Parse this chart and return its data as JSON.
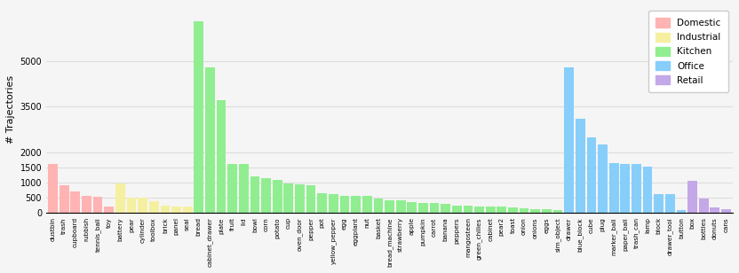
{
  "categories": [
    "dustbin",
    "trash",
    "cupboard",
    "rubbish",
    "tennis_ball",
    "toy",
    "battery",
    "pear",
    "cylinder",
    "toolbox",
    "brick",
    "panel",
    "seal",
    "bread",
    "cabinet_drawer",
    "plate",
    "fruit",
    "lid",
    "bowl",
    "corn",
    "potato",
    "cup",
    "oven_door",
    "pepper",
    "pot",
    "yellow_pepper",
    "egg",
    "eggplant",
    "nut",
    "basket",
    "bread_machine",
    "strawberry",
    "apple",
    "pumpkin",
    "carrot",
    "banana",
    "peppers",
    "mangosteen",
    "green_chilies",
    "cabinet",
    "pear2",
    "toast",
    "onion",
    "onions",
    "eggs",
    "sim_object",
    "drawer",
    "blue_block",
    "cube",
    "plug",
    "marker_ball",
    "paper_ball",
    "trash_can",
    "lamp",
    "block",
    "drawer_tool",
    "button",
    "box",
    "bottles",
    "donuts",
    "cans"
  ],
  "values": [
    1600,
    900,
    700,
    550,
    530,
    210,
    960,
    510,
    510,
    380,
    240,
    210,
    210,
    6300,
    4800,
    3700,
    1600,
    1600,
    1200,
    1150,
    1100,
    975,
    950,
    920,
    650,
    625,
    560,
    555,
    550,
    480,
    430,
    430,
    370,
    340,
    330,
    290,
    250,
    230,
    215,
    210,
    200,
    180,
    160,
    140,
    130,
    110,
    4800,
    3100,
    2500,
    2250,
    1650,
    1600,
    1600,
    1520,
    620,
    620,
    100,
    1050,
    480,
    170,
    140
  ],
  "colors": [
    "#FFB3B3",
    "#FFB3B3",
    "#FFB3B3",
    "#FFB3B3",
    "#FFB3B3",
    "#FFB3B3",
    "#F5F0A0",
    "#F5F0A0",
    "#F5F0A0",
    "#F5F0A0",
    "#F5F0A0",
    "#F5F0A0",
    "#F5F0A0",
    "#90EE90",
    "#90EE90",
    "#90EE90",
    "#90EE90",
    "#90EE90",
    "#90EE90",
    "#90EE90",
    "#90EE90",
    "#90EE90",
    "#90EE90",
    "#90EE90",
    "#90EE90",
    "#90EE90",
    "#90EE90",
    "#90EE90",
    "#90EE90",
    "#90EE90",
    "#90EE90",
    "#90EE90",
    "#90EE90",
    "#90EE90",
    "#90EE90",
    "#90EE90",
    "#90EE90",
    "#90EE90",
    "#90EE90",
    "#90EE90",
    "#90EE90",
    "#90EE90",
    "#90EE90",
    "#90EE90",
    "#90EE90",
    "#90EE90",
    "#87CEFA",
    "#87CEFA",
    "#87CEFA",
    "#87CEFA",
    "#87CEFA",
    "#87CEFA",
    "#87CEFA",
    "#87CEFA",
    "#87CEFA",
    "#87CEFA",
    "#87CEFA",
    "#C4A8E8",
    "#C4A8E8",
    "#C4A8E8",
    "#C4A8E8"
  ],
  "ylabel": "# Trajectories",
  "yticks": [
    0,
    500,
    1000,
    1500,
    2000,
    3500,
    5000
  ],
  "legend_labels": [
    "Domestic",
    "Industrial",
    "Kitchen",
    "Office",
    "Retail"
  ],
  "legend_colors": [
    "#FFB3B3",
    "#F5F0A0",
    "#90EE90",
    "#87CEFA",
    "#C4A8E8"
  ],
  "bg_color": "#F5F5F5",
  "grid_color": "#DDDDDD"
}
